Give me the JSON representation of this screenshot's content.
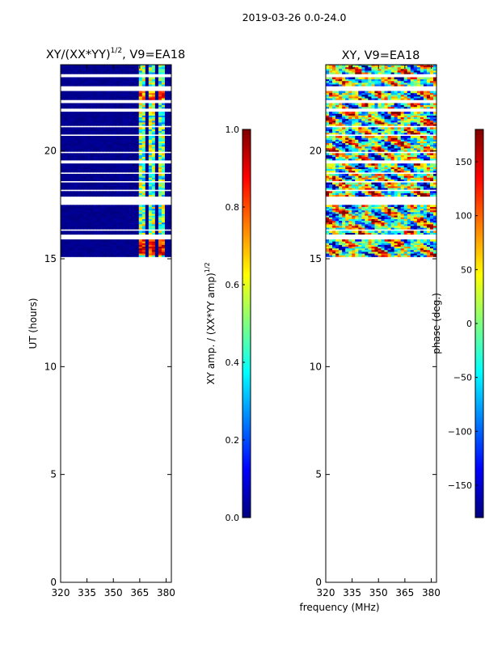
{
  "figure": {
    "suptitle": "2019-03-26 0.0-24.0",
    "colors": {
      "jet": [
        "#00007f",
        "#0000ff",
        "#007fff",
        "#00ffff",
        "#7fff7f",
        "#ffff00",
        "#ff7f00",
        "#ff0000",
        "#7f0000"
      ]
    }
  },
  "chart_data": [
    {
      "type": "heatmap",
      "title": "XY/(XX*YY)^1/2, V9=EA18",
      "title_main": "XY/(XX*YY)",
      "title_exp": "1/2",
      "title_tail": ", V9=EA18",
      "xlabel": "",
      "ylabel": "UT (hours)",
      "xlim": [
        320,
        383
      ],
      "ylim": [
        0,
        24
      ],
      "xticks": [
        320,
        335,
        350,
        365,
        380
      ],
      "yticks": [
        0,
        5,
        10,
        15,
        20
      ],
      "data_time_range": [
        15.1,
        24.0
      ],
      "colorbar": {
        "label": "XY amp. / (XX*YY amp)^1/2",
        "label_main": "XY amp. / (XX*YY amp)",
        "label_exp": "1/2",
        "range": [
          0.0,
          1.0
        ],
        "ticks": [
          "0.0",
          "0.2",
          "0.4",
          "0.6",
          "0.8",
          "1.0"
        ]
      }
    },
    {
      "type": "heatmap",
      "title": "XY, V9=EA18",
      "xlabel": "frequency (MHz)",
      "ylabel": "",
      "xlim": [
        320,
        383
      ],
      "ylim": [
        0,
        24
      ],
      "xticks": [
        320,
        335,
        350,
        365,
        380
      ],
      "yticks": [
        0,
        5,
        10,
        15,
        20
      ],
      "data_time_range": [
        15.1,
        24.0
      ],
      "colorbar": {
        "label": "phase (deg.)",
        "range": [
          -180,
          180
        ],
        "ticks": [
          "−150",
          "−100",
          "−50",
          "0",
          "50",
          "100",
          "150"
        ],
        "tick_values": [
          -150,
          -100,
          -50,
          0,
          50,
          100,
          150
        ]
      }
    }
  ]
}
